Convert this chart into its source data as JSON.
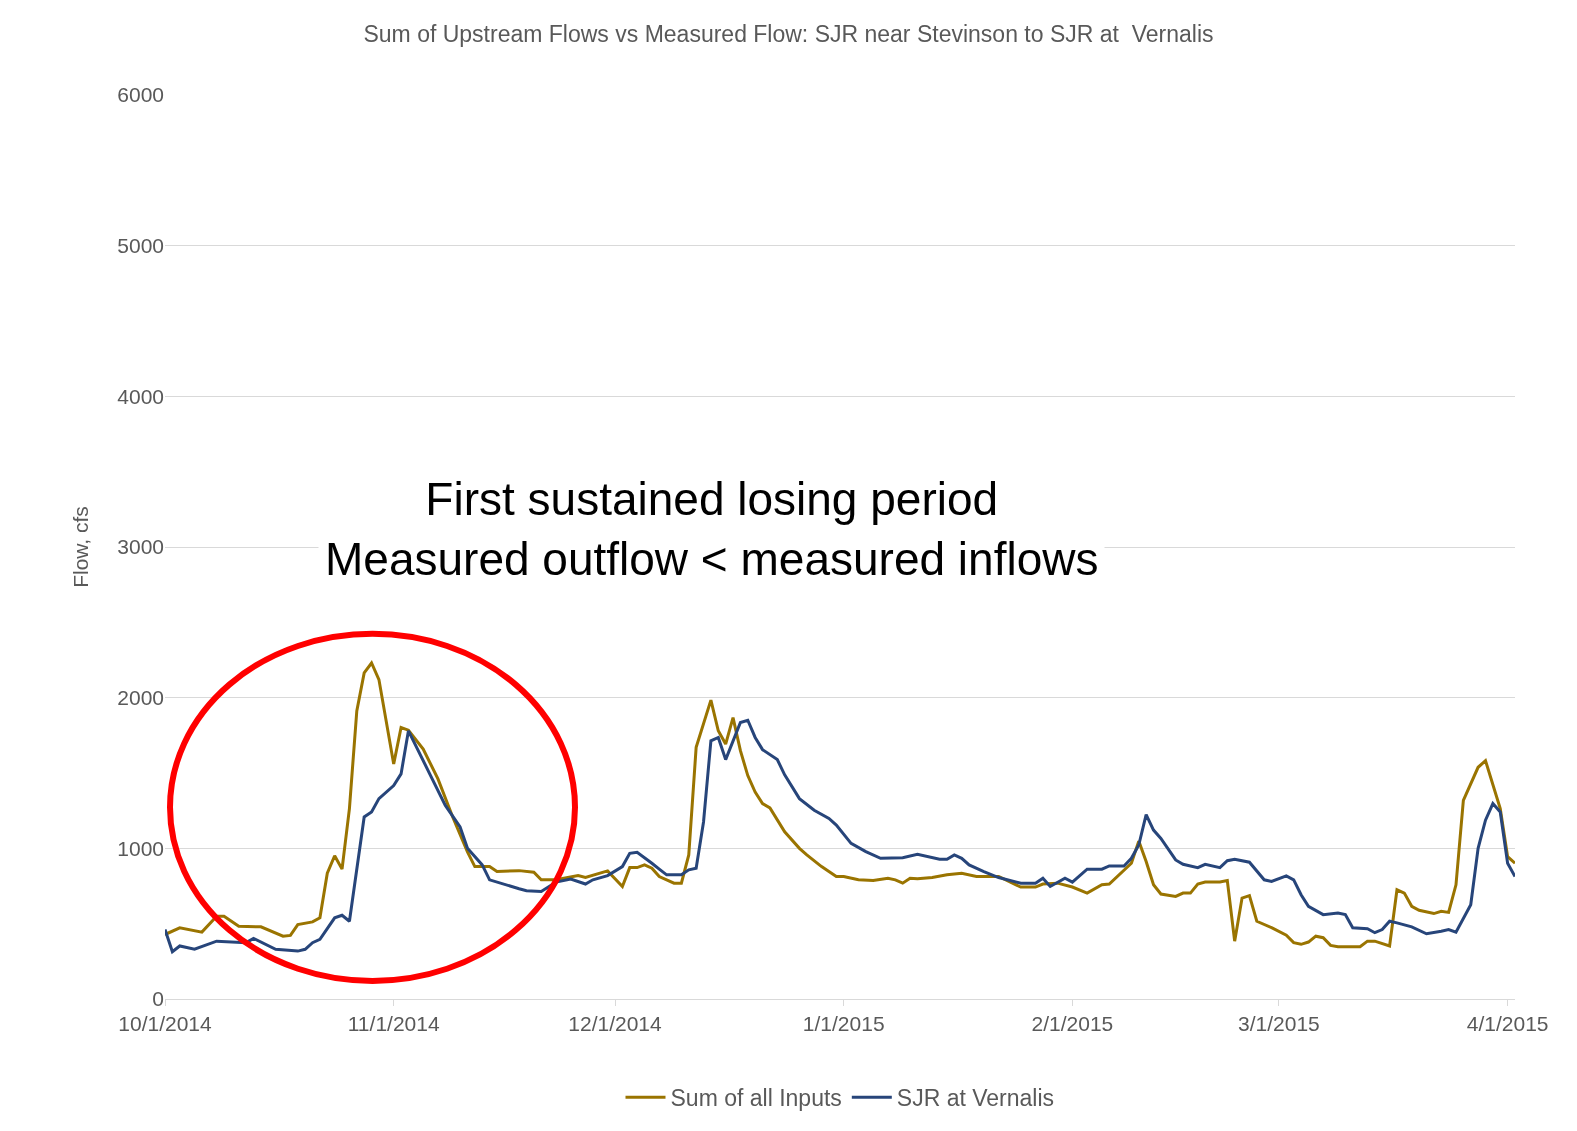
{
  "chart_data": {
    "type": "line",
    "title": "Sum of Upstream Flows vs Measured Flow: SJR near Stevinson to SJR at  Vernalis",
    "ylabel": "Flow, cfs",
    "annotations": [
      "First sustained losing period\nMeasured outflow < measured inflows"
    ],
    "xlim": [
      "2014-10-01",
      "2015-04-02"
    ],
    "xticks": [
      {
        "value": "2014-10-01",
        "label": "10/1/2014"
      },
      {
        "value": "2014-11-01",
        "label": "11/1/2014"
      },
      {
        "value": "2014-12-01",
        "label": "12/1/2014"
      },
      {
        "value": "2015-01-01",
        "label": "1/1/2015"
      },
      {
        "value": "2015-02-01",
        "label": "2/1/2015"
      },
      {
        "value": "2015-03-01",
        "label": "3/1/2015"
      },
      {
        "value": "2015-04-01",
        "label": "4/1/2015"
      }
    ],
    "ylim": [
      0,
      6000
    ],
    "yticks": [
      0,
      1000,
      2000,
      3000,
      4000,
      5000,
      6000
    ],
    "grid": "y",
    "legend": "bottom",
    "marker": "none",
    "line_style": "solid",
    "series": [
      {
        "name": "Sum of all Inputs",
        "color": "#9a7400",
        "x": [
          "2014-10-01",
          "2014-10-03",
          "2014-10-06",
          "2014-10-08",
          "2014-10-09",
          "2014-10-11",
          "2014-10-14",
          "2014-10-17",
          "2014-10-18",
          "2014-10-19",
          "2014-10-21",
          "2014-10-22",
          "2014-10-23",
          "2014-10-24",
          "2014-10-25",
          "2014-10-26",
          "2014-10-27",
          "2014-10-28",
          "2014-10-29",
          "2014-10-30",
          "2014-11-01",
          "2014-11-02",
          "2014-11-03",
          "2014-11-05",
          "2014-11-07",
          "2014-11-09",
          "2014-11-11",
          "2014-11-12",
          "2014-11-14",
          "2014-11-15",
          "2014-11-18",
          "2014-11-20",
          "2014-11-21",
          "2014-11-23",
          "2014-11-26",
          "2014-11-27",
          "2014-11-30",
          "2014-12-02",
          "2014-12-03",
          "2014-12-04",
          "2014-12-05",
          "2014-12-06",
          "2014-12-07",
          "2014-12-09",
          "2014-12-10",
          "2014-12-11",
          "2014-12-12",
          "2014-12-14",
          "2014-12-15",
          "2014-12-16",
          "2014-12-17",
          "2014-12-18",
          "2014-12-19",
          "2014-12-20",
          "2014-12-21",
          "2014-12-22",
          "2014-12-24",
          "2014-12-26",
          "2014-12-27",
          "2014-12-29",
          "2014-12-30",
          "2014-12-31",
          "2015-01-01",
          "2015-01-03",
          "2015-01-05",
          "2015-01-07",
          "2015-01-08",
          "2015-01-09",
          "2015-01-10",
          "2015-01-11",
          "2015-01-13",
          "2015-01-15",
          "2015-01-17",
          "2015-01-19",
          "2015-01-22",
          "2015-01-25",
          "2015-01-27",
          "2015-01-28",
          "2015-01-30",
          "2015-02-01",
          "2015-02-03",
          "2015-02-05",
          "2015-02-06",
          "2015-02-09",
          "2015-02-10",
          "2015-02-11",
          "2015-02-12",
          "2015-02-13",
          "2015-02-15",
          "2015-02-16",
          "2015-02-17",
          "2015-02-18",
          "2015-02-19",
          "2015-02-21",
          "2015-02-22",
          "2015-02-23",
          "2015-02-24",
          "2015-02-25",
          "2015-02-26",
          "2015-02-28",
          "2015-03-02",
          "2015-03-03",
          "2015-03-04",
          "2015-03-05",
          "2015-03-06",
          "2015-03-07",
          "2015-03-08",
          "2015-03-09",
          "2015-03-12",
          "2015-03-13",
          "2015-03-14",
          "2015-03-16",
          "2015-03-17",
          "2015-03-18",
          "2015-03-19",
          "2015-03-20",
          "2015-03-22",
          "2015-03-23",
          "2015-03-24",
          "2015-03-25",
          "2015-03-26",
          "2015-03-28",
          "2015-03-29",
          "2015-03-31",
          "2015-04-01",
          "2015-04-02"
        ],
        "values": [
          428,
          472,
          444,
          549,
          549,
          483,
          479,
          417,
          422,
          494,
          512,
          539,
          835,
          951,
          862,
          1264,
          1912,
          2164,
          2230,
          2120,
          1560,
          1802,
          1784,
          1659,
          1461,
          1208,
          977,
          879,
          879,
          846,
          852,
          842,
          791,
          791,
          819,
          806,
          850,
          747,
          872,
          872,
          890,
          868,
          813,
          769,
          769,
          956,
          1670,
          1984,
          1780,
          1692,
          1868,
          1648,
          1483,
          1373,
          1297,
          1268,
          1110,
          1000,
          956,
          879,
          846,
          813,
          813,
          791,
          786,
          802,
          791,
          769,
          802,
          798,
          806,
          824,
          835,
          813,
          813,
          743,
          743,
          763,
          769,
          743,
          703,
          758,
          763,
          901,
          1048,
          912,
          758,
          697,
          681,
          703,
          703,
          763,
          776,
          776,
          786,
          384,
          670,
          686,
          516,
          473,
          424,
          374,
          363,
          378,
          417,
          407,
          356,
          347,
          347,
          384,
          384,
          352,
          725,
          703,
          615,
          589,
          567,
          582,
          575,
          758,
          1318,
          1538,
          1582,
          1264,
          945,
          901
        ]
      },
      {
        "name": "SJR at Vernalis",
        "color": "#27457a",
        "x": [
          "2014-10-01",
          "2014-10-02",
          "2014-10-03",
          "2014-10-05",
          "2014-10-08",
          "2014-10-12",
          "2014-10-13",
          "2014-10-16",
          "2014-10-19",
          "2014-10-20",
          "2014-10-21",
          "2014-10-22",
          "2014-10-24",
          "2014-10-25",
          "2014-10-26",
          "2014-10-28",
          "2014-10-29",
          "2014-10-30",
          "2014-11-01",
          "2014-11-02",
          "2014-11-03",
          "2014-11-06",
          "2014-11-08",
          "2014-11-10",
          "2014-11-11",
          "2014-11-13",
          "2014-11-14",
          "2014-11-18",
          "2014-11-19",
          "2014-11-21",
          "2014-11-23",
          "2014-11-25",
          "2014-11-27",
          "2014-11-28",
          "2014-11-30",
          "2014-12-02",
          "2014-12-03",
          "2014-12-04",
          "2014-12-06",
          "2014-12-07",
          "2014-12-08",
          "2014-12-10",
          "2014-12-11",
          "2014-12-12",
          "2014-12-13",
          "2014-12-14",
          "2014-12-15",
          "2014-12-16",
          "2014-12-18",
          "2014-12-19",
          "2014-12-20",
          "2014-12-21",
          "2014-12-23",
          "2014-12-24",
          "2014-12-26",
          "2014-12-28",
          "2014-12-30",
          "2014-12-31",
          "2015-01-02",
          "2015-01-04",
          "2015-01-06",
          "2015-01-09",
          "2015-01-11",
          "2015-01-14",
          "2015-01-15",
          "2015-01-16",
          "2015-01-17",
          "2015-01-18",
          "2015-01-20",
          "2015-01-22",
          "2015-01-25",
          "2015-01-27",
          "2015-01-28",
          "2015-01-29",
          "2015-01-31",
          "2015-02-01",
          "2015-02-03",
          "2015-02-05",
          "2015-02-06",
          "2015-02-08",
          "2015-02-09",
          "2015-02-10",
          "2015-02-11",
          "2015-02-12",
          "2015-02-13",
          "2015-02-15",
          "2015-02-16",
          "2015-02-18",
          "2015-02-19",
          "2015-02-21",
          "2015-02-22",
          "2015-02-23",
          "2015-02-25",
          "2015-02-27",
          "2015-02-28",
          "2015-03-02",
          "2015-03-03",
          "2015-03-04",
          "2015-03-05",
          "2015-03-07",
          "2015-03-09",
          "2015-03-10",
          "2015-03-11",
          "2015-03-13",
          "2015-03-14",
          "2015-03-15",
          "2015-03-16",
          "2015-03-17",
          "2015-03-19",
          "2015-03-21",
          "2015-03-23",
          "2015-03-24",
          "2015-03-25",
          "2015-03-27",
          "2015-03-28",
          "2015-03-29",
          "2015-03-30",
          "2015-03-31",
          "2015-04-01",
          "2015-04-02"
        ],
        "values": [
          461,
          314,
          352,
          330,
          384,
          374,
          402,
          330,
          318,
          330,
          374,
          396,
          539,
          556,
          516,
          1208,
          1241,
          1330,
          1417,
          1494,
          1780,
          1483,
          1285,
          1142,
          1000,
          890,
          791,
          732,
          719,
          714,
          776,
          796,
          763,
          791,
          819,
          879,
          967,
          974,
          901,
          862,
          824,
          824,
          857,
          868,
          1175,
          1714,
          1736,
          1589,
          1835,
          1850,
          1736,
          1655,
          1589,
          1488,
          1330,
          1253,
          1198,
          1154,
          1033,
          978,
          934,
          938,
          960,
          927,
          927,
          956,
          934,
          890,
          846,
          806,
          769,
          769,
          802,
          747,
          802,
          776,
          862,
          862,
          883,
          883,
          934,
          1022,
          1224,
          1121,
          1066,
          923,
          894,
          872,
          894,
          872,
          918,
          927,
          908,
          791,
          780,
          817,
          791,
          692,
          615,
          560,
          571,
          560,
          473,
          466,
          440,
          461,
          516,
          505,
          479,
          433,
          450,
          461,
          444,
          626,
          1000,
          1187,
          1297,
          1241,
          901,
          813
        ]
      }
    ]
  }
}
